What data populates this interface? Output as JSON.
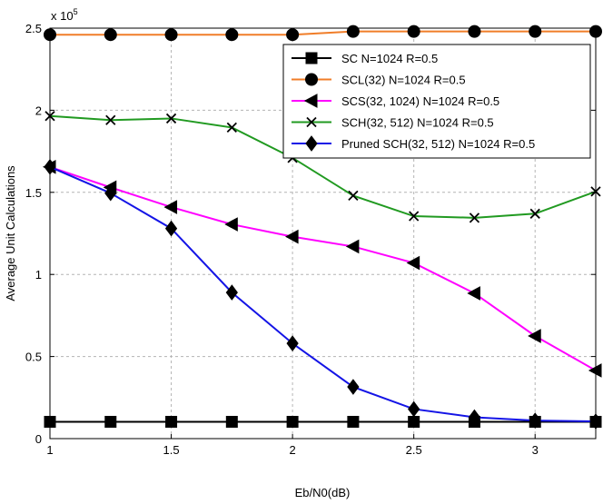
{
  "chart_data": {
    "type": "line",
    "title": "",
    "xlabel": "Eb/N0(dB)",
    "ylabel": "Average Unit Calculations",
    "y_exponent_label": "x 10",
    "y_exponent_power": "5",
    "y_scale_factor": 100000,
    "xlim": [
      1,
      3.25
    ],
    "ylim": [
      0,
      250000
    ],
    "x_ticks": [
      1,
      1.5,
      2,
      2.5,
      3
    ],
    "x_tick_labels": [
      "1",
      "1.5",
      "2",
      "2.5",
      "3"
    ],
    "y_ticks": [
      0,
      50000,
      100000,
      150000,
      200000,
      250000
    ],
    "y_tick_labels": [
      "0",
      "0.5",
      "1",
      "1.5",
      "2",
      "2.5"
    ],
    "grid": true,
    "legend_position": "top-right",
    "x": [
      1,
      1.25,
      1.5,
      1.75,
      2,
      2.25,
      2.5,
      2.75,
      3,
      3.25
    ],
    "series": [
      {
        "name": "SC N=1024 R=0.5",
        "color": "#000000",
        "marker": "square",
        "values": [
          10240,
          10240,
          10240,
          10240,
          10240,
          10240,
          10240,
          10240,
          10240,
          10240
        ]
      },
      {
        "name": "SCL(32) N=1024 R=0.5",
        "color": "#f07d28",
        "marker": "circle",
        "values": [
          246000,
          246000,
          246000,
          246000,
          246000,
          248000,
          248000,
          248000,
          248000,
          248000
        ]
      },
      {
        "name": "SCS(32, 1024) N=1024 R=0.5",
        "color": "#ff00ff",
        "marker": "triangle-left",
        "values": [
          165500,
          153000,
          141000,
          130500,
          123000,
          117000,
          107000,
          88500,
          62500,
          41500
        ]
      },
      {
        "name": "SCH(32, 512)  N=1024 R=0.5",
        "color": "#219a21",
        "marker": "x",
        "values": [
          196500,
          194000,
          195000,
          189500,
          171000,
          148000,
          135500,
          134500,
          137000,
          150500
        ]
      },
      {
        "name": "Pruned SCH(32, 512)  N=1024 R=0.5",
        "color": "#1414e6",
        "marker": "diamond",
        "values": [
          165500,
          149500,
          128000,
          89000,
          58000,
          31500,
          18000,
          13000,
          11000,
          10500
        ]
      }
    ]
  }
}
